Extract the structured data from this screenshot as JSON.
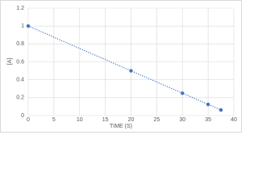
{
  "chart_data": {
    "type": "scatter",
    "x_label": "TIME (S)",
    "y_label": "[A]",
    "x": [
      0,
      20,
      30,
      35,
      37.5
    ],
    "values": [
      1,
      0.5,
      0.25,
      0.125,
      0.0625
    ],
    "color": "#4472c4",
    "connect": "dotted",
    "xlim": [
      0,
      40
    ],
    "xticks": [
      0,
      5,
      10,
      15,
      20,
      25,
      30,
      35,
      40
    ],
    "ylim": [
      0,
      1.2
    ],
    "yticks": [
      0,
      0.2,
      0.4,
      0.6,
      0.8,
      1,
      1.2
    ],
    "grid": true
  }
}
